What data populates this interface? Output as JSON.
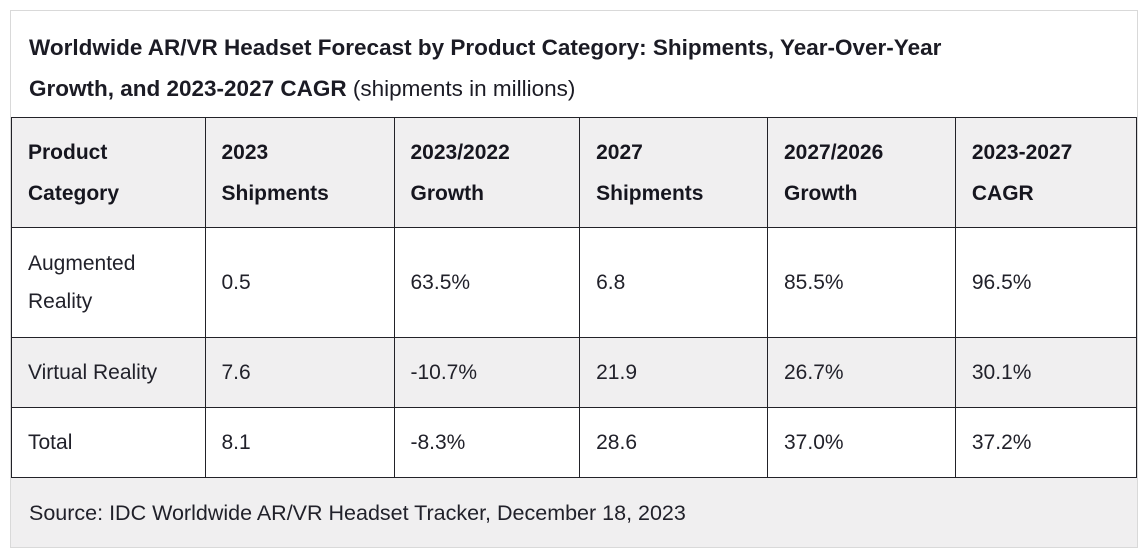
{
  "chart_data": {
    "type": "table",
    "title": "Worldwide AR/VR Headset Forecast by Product Category: Shipments, Year-Over-Year\nGrowth, and 2023-2027 CAGR",
    "subtitle": " (shipments in millions)",
    "columns": [
      "Product\nCategory",
      "2023\nShipments",
      "2023/2022\nGrowth",
      "2027\nShipments",
      "2027/2026\nGrowth",
      "2023-2027\nCAGR"
    ],
    "rows": [
      [
        "Augmented\nReality",
        "0.5",
        "63.5%",
        "6.8",
        "85.5%",
        "96.5%"
      ],
      [
        "Virtual Reality",
        "7.6",
        "-10.7%",
        "21.9",
        "26.7%",
        "30.1%"
      ],
      [
        "Total",
        "8.1",
        "-8.3%",
        "28.6",
        "37.0%",
        "37.2%"
      ]
    ],
    "numeric": {
      "categories": [
        "Augmented Reality",
        "Virtual Reality",
        "Total"
      ],
      "shipments_2023_millions": [
        0.5,
        7.6,
        8.1
      ],
      "growth_2023_vs_2022_pct": [
        63.5,
        -10.7,
        -8.3
      ],
      "shipments_2027_millions": [
        6.8,
        21.9,
        28.6
      ],
      "growth_2027_vs_2026_pct": [
        85.5,
        26.7,
        37.0
      ],
      "cagr_2023_2027_pct": [
        96.5,
        30.1,
        37.2
      ]
    },
    "source": "Source: IDC Worldwide AR/VR Headset Tracker, December 18, 2023",
    "layout": {
      "shaded_rows": [
        "header",
        "Virtual Reality",
        "source"
      ],
      "grid": "all-borders",
      "legend": "none"
    }
  },
  "colors": {
    "text": "#21212a",
    "heading_text": "#16161f",
    "table_border": "#222228",
    "shaded_row_bg": "#f0eff0",
    "outer_border": "#d9d9d9",
    "background": "#ffffff"
  }
}
